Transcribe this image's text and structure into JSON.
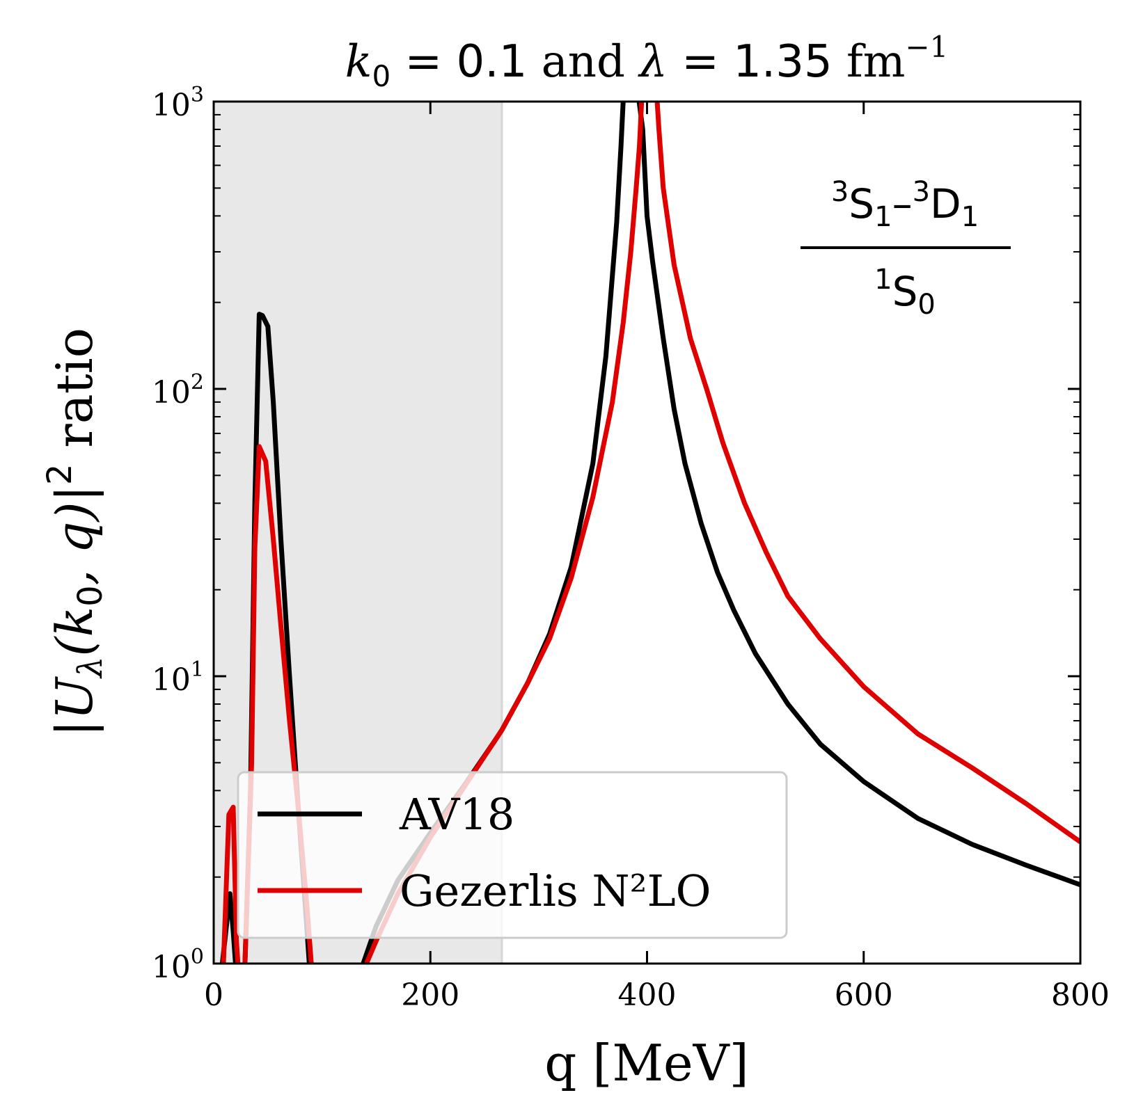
{
  "chart_data": {
    "type": "line",
    "title": {
      "k_symbol": "k",
      "k_subscript": "0",
      "k_value": "= 0.1",
      "conjunction": "and",
      "lambda_symbol": "λ",
      "lambda_value": "= 1.35",
      "unit": "fm",
      "unit_exponent": "−1"
    },
    "xlabel": "q [MeV]",
    "ylabel": {
      "prefix": "|U",
      "lambda_sub": "λ",
      "args_open": "(k",
      "k_sub": "0",
      "args_close": ", q)|",
      "power": "2",
      "suffix": "ratio"
    },
    "xlim": [
      0,
      800
    ],
    "ylim": [
      1,
      1000
    ],
    "yscale": "log",
    "x_ticks": [
      {
        "value": 0,
        "label": "0"
      },
      {
        "value": 200,
        "label": "200"
      },
      {
        "value": 400,
        "label": "400"
      },
      {
        "value": 600,
        "label": "600"
      },
      {
        "value": 800,
        "label": "800"
      }
    ],
    "y_ticks": [
      {
        "value": 1,
        "base": "10",
        "exponent": "0"
      },
      {
        "value": 10,
        "base": "10",
        "exponent": "1"
      },
      {
        "value": 100,
        "base": "10",
        "exponent": "2"
      },
      {
        "value": 1000,
        "base": "10",
        "exponent": "3"
      }
    ],
    "shaded_region": {
      "x": [
        0,
        266
      ],
      "color": "#e8e8e8"
    },
    "annotation": {
      "numerator": {
        "pre": "3",
        "s": "S",
        "s_sub": "1",
        "dash": "–",
        "pre2": "3",
        "d": "D",
        "d_sub": "1"
      },
      "denominator": {
        "pre": "1",
        "s": "S",
        "s_sub": "0"
      }
    },
    "legend_position": "lower-left",
    "series": [
      {
        "name": "AV18",
        "color": "#000000",
        "points": [
          [
            0,
            0.8
          ],
          [
            8,
            1.0
          ],
          [
            15,
            1.75
          ],
          [
            18,
            1.3
          ],
          [
            22,
            0.8
          ],
          [
            28,
            0.8
          ],
          [
            34,
            4
          ],
          [
            38,
            40
          ],
          [
            42,
            182
          ],
          [
            45,
            180
          ],
          [
            50,
            165
          ],
          [
            55,
            90
          ],
          [
            62,
            30
          ],
          [
            70,
            10
          ],
          [
            78,
            3.5
          ],
          [
            85,
            1.5
          ],
          [
            90,
            0.8
          ],
          [
            130,
            0.8
          ],
          [
            138,
            1.0
          ],
          [
            150,
            1.35
          ],
          [
            170,
            1.95
          ],
          [
            200,
            2.85
          ],
          [
            230,
            4.1
          ],
          [
            260,
            6.0
          ],
          [
            266,
            6.5
          ],
          [
            290,
            9.5
          ],
          [
            310,
            14
          ],
          [
            330,
            24
          ],
          [
            350,
            55
          ],
          [
            362,
            130
          ],
          [
            372,
            380
          ],
          [
            376,
            700
          ],
          [
            379,
            1200
          ],
          [
            390,
            1200
          ],
          [
            396,
            800
          ],
          [
            400,
            400
          ],
          [
            405,
            280
          ],
          [
            415,
            150
          ],
          [
            425,
            85
          ],
          [
            435,
            55
          ],
          [
            450,
            34
          ],
          [
            465,
            23
          ],
          [
            480,
            17
          ],
          [
            500,
            12
          ],
          [
            530,
            8
          ],
          [
            560,
            5.8
          ],
          [
            600,
            4.3
          ],
          [
            650,
            3.2
          ],
          [
            700,
            2.6
          ],
          [
            750,
            2.2
          ],
          [
            800,
            1.88
          ]
        ]
      },
      {
        "name": "Gezerlis N²LO",
        "color": "#e00000",
        "points": [
          [
            0,
            0.8
          ],
          [
            9,
            1.0
          ],
          [
            14,
            3.3
          ],
          [
            18,
            3.5
          ],
          [
            21,
            1.2
          ],
          [
            24,
            0.8
          ],
          [
            28,
            0.8
          ],
          [
            35,
            5
          ],
          [
            38,
            28
          ],
          [
            42,
            63
          ],
          [
            48,
            56
          ],
          [
            55,
            30
          ],
          [
            62,
            15
          ],
          [
            70,
            7
          ],
          [
            78,
            3.5
          ],
          [
            86,
            1.6
          ],
          [
            92,
            0.8
          ],
          [
            135,
            0.8
          ],
          [
            141,
            1.0
          ],
          [
            150,
            1.2
          ],
          [
            170,
            1.75
          ],
          [
            200,
            2.75
          ],
          [
            230,
            4.05
          ],
          [
            260,
            6.0
          ],
          [
            266,
            6.5
          ],
          [
            290,
            9.5
          ],
          [
            310,
            13.5
          ],
          [
            330,
            22
          ],
          [
            350,
            42
          ],
          [
            368,
            90
          ],
          [
            378,
            170
          ],
          [
            385,
            300
          ],
          [
            390,
            500
          ],
          [
            393,
            700
          ],
          [
            396,
            1200
          ],
          [
            408,
            1200
          ],
          [
            411,
            800
          ],
          [
            415,
            500
          ],
          [
            425,
            270
          ],
          [
            440,
            150
          ],
          [
            455,
            100
          ],
          [
            470,
            65
          ],
          [
            490,
            40
          ],
          [
            510,
            27
          ],
          [
            530,
            19
          ],
          [
            560,
            13.5
          ],
          [
            600,
            9.2
          ],
          [
            650,
            6.3
          ],
          [
            700,
            4.8
          ],
          [
            750,
            3.6
          ],
          [
            800,
            2.65
          ]
        ]
      }
    ]
  }
}
